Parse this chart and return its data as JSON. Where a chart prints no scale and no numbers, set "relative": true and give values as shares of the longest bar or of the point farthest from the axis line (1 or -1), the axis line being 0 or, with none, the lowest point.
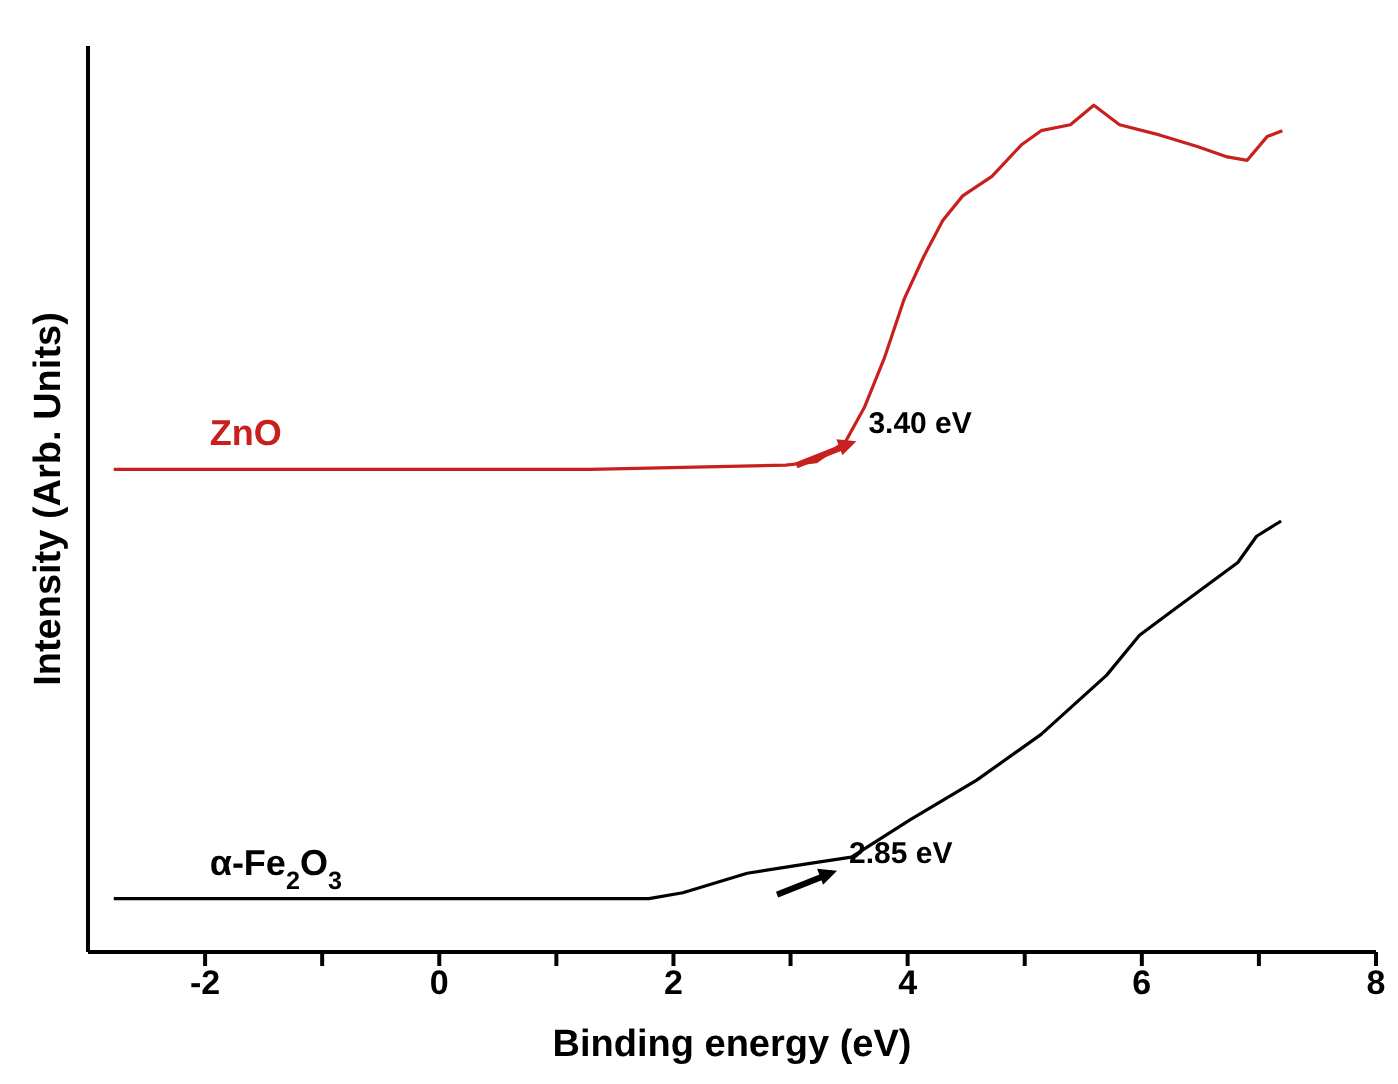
{
  "chart_data": {
    "type": "line",
    "relative": true,
    "xlabel": "Binding energy (eV)",
    "ylabel": "Intensity (Arb. Units)",
    "xlim": [
      -3,
      8
    ],
    "xticks": [
      -2,
      {
        "value": -1,
        "label": null
      },
      0,
      {
        "value": 1,
        "label": null
      },
      2,
      {
        "value": 3,
        "label": null
      },
      4,
      {
        "value": 5,
        "label": null
      },
      6,
      {
        "value": 7,
        "label": null
      },
      8
    ],
    "marker": "none",
    "line_style": "solid",
    "series": [
      {
        "name": "ZnO",
        "color": "#c8201e",
        "x": [
          -2.78,
          1.29,
          2.96,
          3.22,
          3.47,
          3.63,
          3.8,
          3.97,
          4.14,
          4.3,
          4.47,
          4.72,
          4.97,
          5.14,
          5.39,
          5.59,
          5.81,
          6.15,
          6.48,
          6.73,
          6.9,
          7.07,
          7.2
        ],
        "values": [
          0.57,
          0.57,
          0.575,
          0.579,
          0.603,
          0.643,
          0.701,
          0.771,
          0.822,
          0.864,
          0.893,
          0.916,
          0.953,
          0.97,
          0.977,
          1,
          0.977,
          0.965,
          0.951,
          0.939,
          0.935,
          0.963,
          0.97
        ]
      },
      {
        "name": "α-Fe$_{2}$O$_{3}$",
        "color": "#000000",
        "x": [
          -2.78,
          1.79,
          2.08,
          2.63,
          3.18,
          3.52,
          4.02,
          4.59,
          5.14,
          5.7,
          5.98,
          6.27,
          6.82,
          6.98,
          7.19
        ],
        "values": [
          0.063,
          0.063,
          0.07,
          0.093,
          0.105,
          0.112,
          0.156,
          0.203,
          0.257,
          0.327,
          0.374,
          0.404,
          0.46,
          0.491,
          0.509
        ]
      }
    ],
    "annotations": [
      "3.40 eV",
      "2.85 eV"
    ]
  }
}
